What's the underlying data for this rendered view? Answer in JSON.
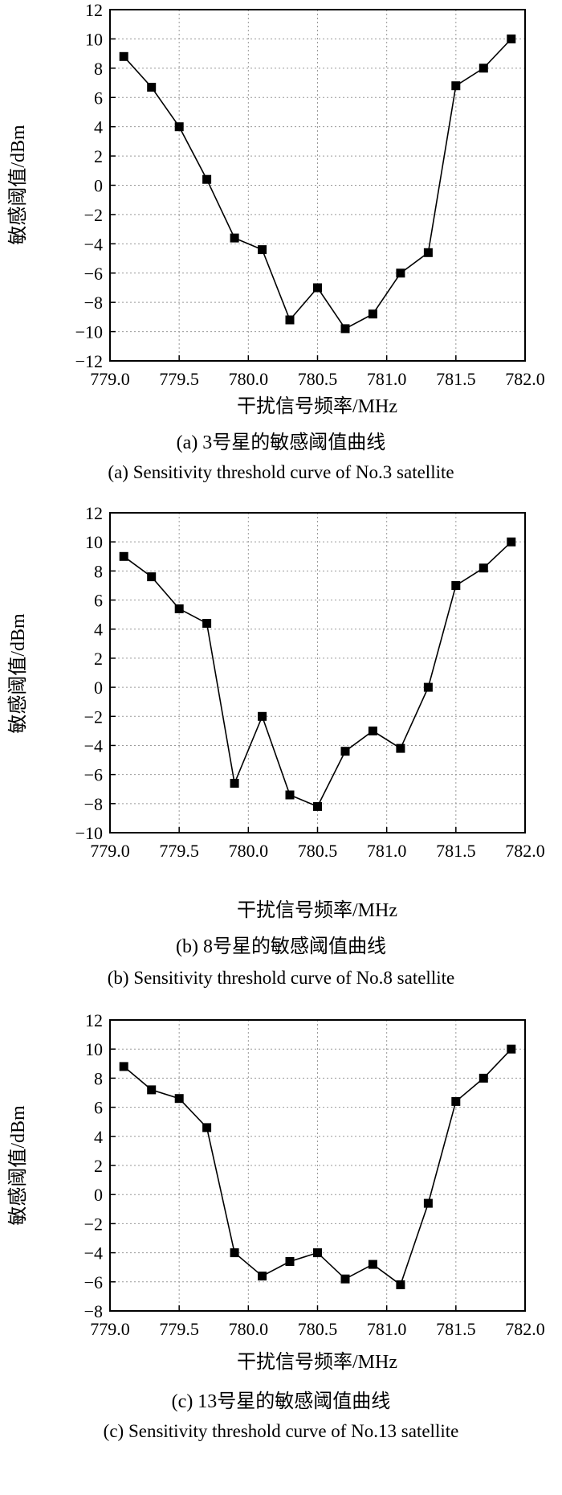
{
  "chart_data": [
    {
      "type": "line",
      "xlabel": "干扰信号频率/MHz",
      "ylabel": "敏感阈值/dBm",
      "xlim": [
        779.0,
        782.0
      ],
      "ylim": [
        -12,
        12
      ],
      "x_ticks": [
        "779.0",
        "779.5",
        "780.0",
        "780.5",
        "781.0",
        "781.5",
        "782.0"
      ],
      "y_ticks": [
        "12",
        "10",
        "8",
        "6",
        "4",
        "2",
        "0",
        "−2",
        "−4",
        "−6",
        "−8",
        "−10",
        "−12"
      ],
      "x": [
        779.1,
        779.3,
        779.5,
        779.7,
        779.9,
        780.1,
        780.3,
        780.5,
        780.7,
        780.9,
        781.1,
        781.3,
        781.5,
        781.7,
        781.9
      ],
      "values": [
        8.8,
        6.7,
        4.0,
        0.4,
        -3.6,
        -4.4,
        -9.2,
        -7.0,
        -9.8,
        -8.8,
        -6.0,
        -4.6,
        6.8,
        8.0,
        10.0
      ],
      "caption_cn": "(a) 3号星的敏感阈值曲线",
      "caption_en": "(a) Sensitivity threshold curve of No.3 satellite"
    },
    {
      "type": "line",
      "xlabel": "干扰信号频率/MHz",
      "ylabel": "敏感阈值/dBm",
      "xlim": [
        779.0,
        782.0
      ],
      "ylim": [
        -10,
        12
      ],
      "x_ticks": [
        "779.0",
        "779.5",
        "780.0",
        "780.5",
        "781.0",
        "781.5",
        "782.0"
      ],
      "y_ticks": [
        "12",
        "10",
        "8",
        "6",
        "4",
        "2",
        "0",
        "−2",
        "−4",
        "−6",
        "−8",
        "−10"
      ],
      "x": [
        779.1,
        779.3,
        779.5,
        779.7,
        779.9,
        780.1,
        780.3,
        780.5,
        780.7,
        780.9,
        781.1,
        781.3,
        781.5,
        781.7,
        781.9
      ],
      "values": [
        9.0,
        7.6,
        5.4,
        4.4,
        -6.6,
        -2.0,
        -7.4,
        -8.2,
        -4.4,
        -3.0,
        -4.2,
        0.0,
        7.0,
        8.2,
        10.0
      ],
      "caption_cn": "(b) 8号星的敏感阈值曲线",
      "caption_en": "(b) Sensitivity threshold curve of No.8 satellite"
    },
    {
      "type": "line",
      "xlabel": "干扰信号频率/MHz",
      "ylabel": "敏感阈值/dBm",
      "xlim": [
        779.0,
        782.0
      ],
      "ylim": [
        -8,
        12
      ],
      "x_ticks": [
        "779.0",
        "779.5",
        "780.0",
        "780.5",
        "781.0",
        "781.5",
        "782.0"
      ],
      "y_ticks": [
        "12",
        "10",
        "8",
        "6",
        "4",
        "2",
        "0",
        "−2",
        "−4",
        "−6",
        "−8"
      ],
      "x": [
        779.1,
        779.3,
        779.5,
        779.7,
        779.9,
        780.1,
        780.3,
        780.5,
        780.7,
        780.9,
        781.1,
        781.3,
        781.5,
        781.7,
        781.9
      ],
      "values": [
        8.8,
        7.2,
        6.6,
        4.6,
        -4.0,
        -5.6,
        -4.6,
        -4.0,
        -5.8,
        -4.8,
        -6.2,
        -0.6,
        6.4,
        8.0,
        10.0
      ],
      "caption_cn": "(c) 13号星的敏感阈值曲线",
      "caption_en": "(c) Sensitivity threshold curve of No.13 satellite"
    }
  ]
}
